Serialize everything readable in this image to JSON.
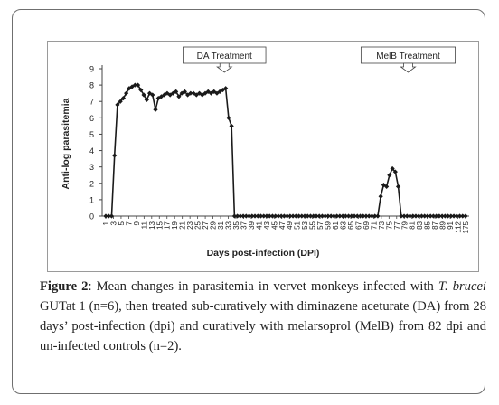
{
  "chart_data": {
    "type": "line",
    "xlabel": "Days post-infection (DPI)",
    "ylabel": "Anti-log parasitemia",
    "ylim": [
      0,
      9
    ],
    "yticks": [
      0,
      1,
      2,
      3,
      4,
      5,
      6,
      7,
      8,
      9
    ],
    "grid": false,
    "marker": "diamond",
    "x_tick_labels": [
      "1",
      "3",
      "5",
      "7",
      "9",
      "11",
      "13",
      "15",
      "17",
      "19",
      "21",
      "23",
      "25",
      "27",
      "29",
      "31",
      "33",
      "35",
      "37",
      "39",
      "41",
      "43",
      "45",
      "47",
      "49",
      "51",
      "53",
      "55",
      "57",
      "59",
      "61",
      "63",
      "65",
      "67",
      "69",
      "71",
      "73",
      "75",
      "77",
      "79",
      "81",
      "83",
      "85",
      "87",
      "89",
      "91",
      "112",
      "175"
    ],
    "annotations": [
      {
        "text": "DA Treatment",
        "x_after_tick": 29
      },
      {
        "text": "MelB Treatment",
        "x_after_tick": 77
      }
    ],
    "series": [
      {
        "values": [
          0,
          0,
          0,
          3.7,
          6.8,
          7.0,
          7.2,
          7.5,
          7.8,
          7.9,
          8.0,
          8.0,
          7.7,
          7.4,
          7.1,
          7.5,
          7.4,
          6.5,
          7.2,
          7.3,
          7.4,
          7.5,
          7.4,
          7.5,
          7.6,
          7.3,
          7.5,
          7.6,
          7.4,
          7.5,
          7.5,
          7.4,
          7.5,
          7.4,
          7.5,
          7.6,
          7.5,
          7.6,
          7.5,
          7.6,
          7.7,
          7.8,
          6.0,
          5.5,
          0,
          0,
          0,
          0,
          0,
          0,
          0,
          0,
          0,
          0,
          0,
          0,
          0,
          0,
          0,
          0,
          0,
          0,
          0,
          0,
          0,
          0,
          0,
          0,
          0,
          0,
          0,
          0,
          0,
          0,
          0,
          0,
          0,
          0,
          0,
          0,
          0,
          0,
          0,
          0,
          0,
          0,
          0,
          0,
          0,
          0,
          0,
          0,
          0,
          0,
          1.2,
          1.9,
          1.8,
          2.5,
          2.9,
          2.7,
          1.8,
          0,
          0,
          0,
          0,
          0,
          0,
          0,
          0,
          0,
          0,
          0,
          0,
          0,
          0,
          0,
          0,
          0,
          0,
          0,
          0,
          0,
          0,
          0
        ]
      }
    ]
  },
  "caption": {
    "label": "Figure 2",
    "text_before_species": ": Mean changes in parasitemia in vervet monkeys infected with ",
    "species": "T. brucei",
    "text_after_species": " GUTat 1 (n=6), then treated sub-curatively with diminazene aceturate (DA) from 28 days’ post-infection (dpi) and curatively with melarsoprol (MelB) from 82 dpi and un-infected controls (n=2)."
  },
  "colors": {
    "line": "#1a1a1a",
    "axis": "#444444",
    "text": "#222222",
    "border": "#6f6f6f"
  }
}
